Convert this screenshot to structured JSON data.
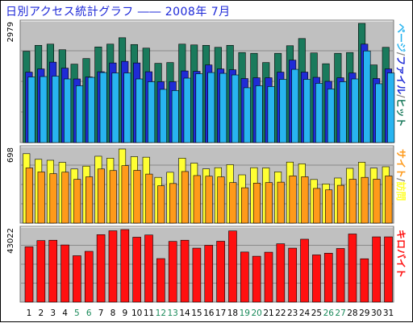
{
  "title": "日別アクセス統計グラフ ―― 2008年 7月",
  "colors": {
    "panel_bg": "#c0c0c0",
    "hit": "#1a7a5c",
    "file": "#1f2bd6",
    "page": "#28b4f0",
    "visit": "#ffff33",
    "site": "#ff9a1a",
    "kbyte": "#ff1010",
    "weekend_label": "#1a8a5a",
    "weekday_label": "#000000"
  },
  "chart_data": [
    {
      "type": "bar",
      "panel": "hits",
      "ylabel": "2979",
      "ylim": [
        0,
        2979
      ],
      "legend": [
        {
          "text": "ページ",
          "color": "#28b4f0"
        },
        {
          "text": "/",
          "color": "#808080"
        },
        {
          "text": "ファイル",
          "color": "#1f2bd6"
        },
        {
          "text": "/",
          "color": "#808080"
        },
        {
          "text": "ヒット",
          "color": "#1a7a5c"
        }
      ],
      "categories": [
        "1",
        "2",
        "3",
        "4",
        "5",
        "6",
        "7",
        "8",
        "9",
        "10",
        "11",
        "12",
        "13",
        "14",
        "15",
        "16",
        "17",
        "18",
        "19",
        "20",
        "21",
        "22",
        "23",
        "24",
        "25",
        "26",
        "27",
        "28",
        "29",
        "30",
        "31"
      ],
      "series": [
        {
          "name": "ヒット",
          "values": [
            2280,
            2430,
            2460,
            2320,
            1960,
            2100,
            2390,
            2460,
            2620,
            2450,
            2360,
            1980,
            2000,
            2460,
            2440,
            2430,
            2380,
            2430,
            2250,
            2230,
            2000,
            2230,
            2420,
            2600,
            2240,
            1970,
            2230,
            2250,
            2979,
            1940,
            2380
          ]
        },
        {
          "name": "ファイル",
          "values": [
            1760,
            1840,
            2010,
            1860,
            1590,
            1640,
            1770,
            1990,
            2030,
            1990,
            1770,
            1520,
            1520,
            1790,
            1780,
            1940,
            1840,
            1820,
            1600,
            1620,
            1620,
            1760,
            2060,
            1760,
            1630,
            1530,
            1620,
            1740,
            2460,
            1600,
            1840
          ]
        },
        {
          "name": "ページ",
          "values": [
            1640,
            1650,
            1660,
            1590,
            1420,
            1630,
            1750,
            1740,
            1740,
            1590,
            1520,
            1330,
            1300,
            1610,
            1720,
            1750,
            1730,
            1690,
            1370,
            1420,
            1400,
            1580,
            1830,
            1580,
            1480,
            1340,
            1520,
            1590,
            2290,
            1470,
            1740
          ]
        }
      ]
    },
    {
      "type": "bar",
      "panel": "visits",
      "ylabel": "698",
      "ylim": [
        0,
        698
      ],
      "legend": [
        {
          "text": "サイト",
          "color": "#ff9a1a"
        },
        {
          "text": "/",
          "color": "#808080"
        },
        {
          "text": "訪問",
          "color": "#ffff33"
        }
      ],
      "categories": [
        "1",
        "2",
        "3",
        "4",
        "5",
        "6",
        "7",
        "8",
        "9",
        "10",
        "11",
        "12",
        "13",
        "14",
        "15",
        "16",
        "17",
        "18",
        "19",
        "20",
        "21",
        "22",
        "23",
        "24",
        "25",
        "26",
        "27",
        "28",
        "29",
        "30",
        "31"
      ],
      "series": [
        {
          "name": "訪問",
          "values": [
            654,
            601,
            592,
            572,
            510,
            537,
            630,
            612,
            698,
            626,
            621,
            431,
            479,
            612,
            565,
            511,
            522,
            551,
            455,
            522,
            520,
            483,
            575,
            559,
            411,
            369,
            425,
            516,
            573,
            518,
            531
          ]
        },
        {
          "name": "サイト",
          "values": [
            520,
            482,
            466,
            480,
            412,
            436,
            510,
            495,
            541,
            497,
            462,
            352,
            373,
            486,
            448,
            442,
            436,
            382,
            333,
            377,
            382,
            386,
            445,
            437,
            327,
            313,
            356,
            413,
            431,
            414,
            444
          ]
        }
      ]
    },
    {
      "type": "bar",
      "panel": "kbytes",
      "ylabel": "43022",
      "ylim": [
        0,
        43022
      ],
      "legend": [
        {
          "text": "キロバイト",
          "color": "#ff1010"
        }
      ],
      "categories": [
        "1",
        "2",
        "3",
        "4",
        "5",
        "6",
        "7",
        "8",
        "9",
        "10",
        "11",
        "12",
        "13",
        "14",
        "15",
        "16",
        "17",
        "18",
        "19",
        "20",
        "21",
        "22",
        "23",
        "24",
        "25",
        "26",
        "27",
        "28",
        "29",
        "30",
        "31"
      ],
      "series": [
        {
          "name": "キロバイト",
          "values": [
            32800,
            36500,
            36700,
            33900,
            27500,
            30100,
            40000,
            42300,
            43022,
            38500,
            39800,
            25800,
            36000,
            36700,
            32000,
            33700,
            36100,
            42200,
            29700,
            27200,
            29600,
            34600,
            32000,
            37300,
            28000,
            29000,
            31800,
            40400,
            25700,
            38700,
            38700
          ]
        }
      ]
    }
  ],
  "x_label_colors": [
    "#000000",
    "#000000",
    "#000000",
    "#000000",
    "#1a8a5a",
    "#1a8a5a",
    "#000000",
    "#000000",
    "#000000",
    "#000000",
    "#000000",
    "#1a8a5a",
    "#1a8a5a",
    "#000000",
    "#000000",
    "#000000",
    "#000000",
    "#000000",
    "#1a8a5a",
    "#1a8a5a",
    "#000000",
    "#000000",
    "#000000",
    "#000000",
    "#000000",
    "#1a8a5a",
    "#1a8a5a",
    "#000000",
    "#000000",
    "#000000",
    "#000000"
  ]
}
